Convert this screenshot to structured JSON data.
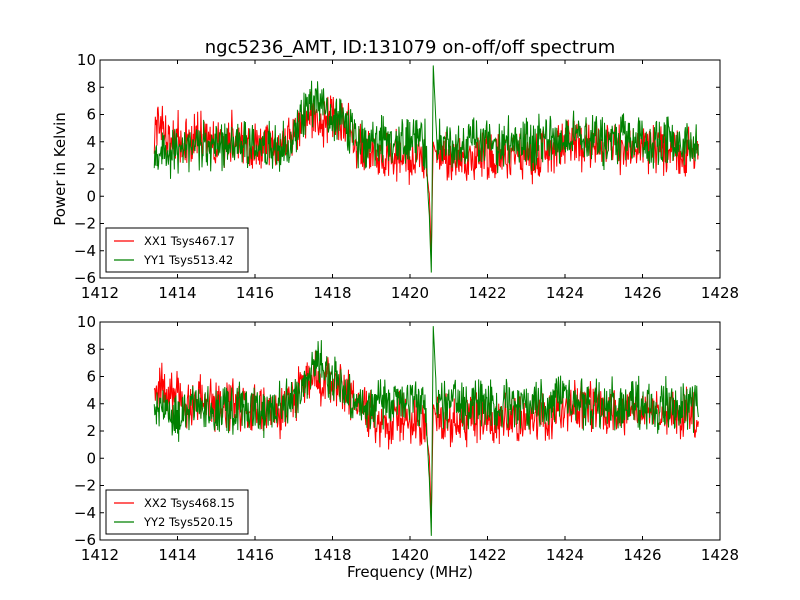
{
  "chart_data": {
    "title": "ngc5236_AMT, ID:131079 on-off/off spectrum",
    "xlabel": "Frequency (MHz)",
    "ylabel": "Power in Kelvin",
    "colors": {
      "xx": "#ff0000",
      "yy": "#008000"
    },
    "panels": [
      {
        "type": "line",
        "xlim": [
          1412,
          1428
        ],
        "ylim": [
          -6,
          10
        ],
        "xticks": [
          1412,
          1414,
          1416,
          1418,
          1420,
          1422,
          1424,
          1426,
          1428
        ],
        "yticks": [
          -6,
          -4,
          -2,
          0,
          2,
          4,
          6,
          8,
          10
        ],
        "legend_position": "lower-left",
        "series": [
          {
            "name": "XX1 Tsys467.17",
            "color": "#ff0000",
            "x": [
              1413.4,
              1413.6,
              1413.8,
              1414.0,
              1414.2,
              1414.4,
              1414.6,
              1414.8,
              1415.0,
              1415.2,
              1415.4,
              1415.6,
              1415.8,
              1416.0,
              1416.2,
              1416.4,
              1416.6,
              1416.8,
              1417.0,
              1417.2,
              1417.4,
              1417.6,
              1417.8,
              1418.0,
              1418.2,
              1418.4,
              1418.6,
              1418.8,
              1419.0,
              1419.2,
              1419.4,
              1419.6,
              1419.8,
              1420.0,
              1420.2,
              1420.4,
              1420.5,
              1420.55,
              1420.6,
              1420.7,
              1420.8,
              1421.0,
              1421.2,
              1421.4,
              1421.6,
              1421.8,
              1422.0,
              1422.2,
              1422.4,
              1422.6,
              1422.8,
              1423.0,
              1423.2,
              1423.4,
              1423.6,
              1423.8,
              1424.0,
              1424.2,
              1424.4,
              1424.6,
              1424.8,
              1425.0,
              1425.2,
              1425.4,
              1425.6,
              1425.8,
              1426.0,
              1426.2,
              1426.4,
              1426.6,
              1426.8,
              1427.0,
              1427.2,
              1427.45
            ],
            "y": [
              4.5,
              5.2,
              4.0,
              4.6,
              3.8,
              4.2,
              4.4,
              3.9,
              4.1,
              3.6,
              4.3,
              3.7,
              3.5,
              3.9,
              3.4,
              3.8,
              3.3,
              3.9,
              4.4,
              5.6,
              6.2,
              5.8,
              5.5,
              6.0,
              5.2,
              5.0,
              4.0,
              3.5,
              3.2,
              3.0,
              2.6,
              2.9,
              3.1,
              2.7,
              3.0,
              2.5,
              0.0,
              -4.3,
              4.0,
              2.9,
              3.1,
              2.8,
              3.0,
              2.4,
              3.2,
              2.9,
              3.1,
              2.6,
              3.3,
              2.8,
              3.0,
              3.2,
              2.7,
              3.4,
              3.1,
              3.5,
              3.8,
              4.0,
              3.6,
              4.2,
              3.7,
              3.5,
              3.9,
              3.4,
              3.6,
              3.2,
              3.8,
              3.3,
              3.5,
              3.1,
              3.6,
              3.0,
              3.4,
              3.2
            ]
          },
          {
            "name": "YY1 Tsys513.42",
            "color": "#008000",
            "x": [
              1413.4,
              1413.6,
              1413.8,
              1414.0,
              1414.2,
              1414.4,
              1414.6,
              1414.8,
              1415.0,
              1415.2,
              1415.4,
              1415.6,
              1415.8,
              1416.0,
              1416.2,
              1416.4,
              1416.6,
              1416.8,
              1417.0,
              1417.2,
              1417.4,
              1417.6,
              1417.8,
              1418.0,
              1418.2,
              1418.4,
              1418.6,
              1418.8,
              1419.0,
              1419.2,
              1419.4,
              1419.6,
              1419.8,
              1420.0,
              1420.2,
              1420.4,
              1420.5,
              1420.55,
              1420.6,
              1420.7,
              1420.8,
              1421.0,
              1421.2,
              1421.4,
              1421.6,
              1421.8,
              1422.0,
              1422.2,
              1422.4,
              1422.6,
              1422.8,
              1423.0,
              1423.2,
              1423.4,
              1423.6,
              1423.8,
              1424.0,
              1424.2,
              1424.4,
              1424.6,
              1424.8,
              1425.0,
              1425.2,
              1425.4,
              1425.6,
              1425.8,
              1426.0,
              1426.2,
              1426.4,
              1426.6,
              1426.8,
              1427.0,
              1427.2,
              1427.45
            ],
            "y": [
              3.2,
              3.6,
              3.4,
              2.8,
              3.7,
              3.5,
              3.9,
              3.3,
              3.8,
              3.6,
              3.4,
              3.9,
              3.5,
              3.7,
              3.3,
              3.9,
              3.6,
              4.0,
              4.4,
              5.4,
              6.5,
              7.3,
              6.0,
              5.7,
              5.3,
              4.6,
              4.1,
              3.8,
              3.9,
              4.2,
              4.0,
              4.4,
              3.8,
              4.1,
              3.9,
              3.6,
              -1.5,
              -5.6,
              9.6,
              3.6,
              3.9,
              4.2,
              4.0,
              3.5,
              4.4,
              3.8,
              4.1,
              3.6,
              3.9,
              4.2,
              3.7,
              4.0,
              3.8,
              4.3,
              4.0,
              4.5,
              4.1,
              4.7,
              4.3,
              3.9,
              4.2,
              3.8,
              4.4,
              3.7,
              4.2,
              3.9,
              4.1,
              3.8,
              3.6,
              4.2,
              3.7,
              4.0,
              3.8,
              3.6
            ]
          }
        ]
      },
      {
        "type": "line",
        "xlim": [
          1412,
          1428
        ],
        "ylim": [
          -6,
          10
        ],
        "xticks": [
          1412,
          1414,
          1416,
          1418,
          1420,
          1422,
          1424,
          1426,
          1428
        ],
        "yticks": [
          -6,
          -4,
          -2,
          0,
          2,
          4,
          6,
          8,
          10
        ],
        "legend_position": "lower-left",
        "series": [
          {
            "name": "XX2 Tsys468.15",
            "color": "#ff0000",
            "x": [
              1413.4,
              1413.6,
              1413.8,
              1414.0,
              1414.2,
              1414.4,
              1414.6,
              1414.8,
              1415.0,
              1415.2,
              1415.4,
              1415.6,
              1415.8,
              1416.0,
              1416.2,
              1416.4,
              1416.6,
              1416.8,
              1417.0,
              1417.2,
              1417.4,
              1417.6,
              1417.8,
              1418.0,
              1418.2,
              1418.4,
              1418.6,
              1418.8,
              1419.0,
              1419.2,
              1419.4,
              1419.6,
              1419.8,
              1420.0,
              1420.2,
              1420.4,
              1420.5,
              1420.55,
              1420.6,
              1420.7,
              1420.8,
              1421.0,
              1421.2,
              1421.4,
              1421.6,
              1421.8,
              1422.0,
              1422.2,
              1422.4,
              1422.6,
              1422.8,
              1423.0,
              1423.2,
              1423.4,
              1423.6,
              1423.8,
              1424.0,
              1424.2,
              1424.4,
              1424.6,
              1424.8,
              1425.0,
              1425.2,
              1425.4,
              1425.6,
              1425.8,
              1426.0,
              1426.2,
              1426.4,
              1426.6,
              1426.8,
              1427.0,
              1427.2,
              1427.45
            ],
            "y": [
              4.6,
              5.0,
              4.2,
              4.8,
              3.9,
              4.3,
              4.5,
              3.8,
              4.0,
              3.7,
              4.2,
              3.6,
              3.4,
              3.8,
              3.5,
              3.7,
              3.2,
              3.8,
              4.3,
              5.5,
              6.1,
              6.0,
              5.4,
              5.8,
              5.1,
              4.9,
              3.9,
              3.4,
              3.1,
              2.8,
              2.5,
              2.8,
              3.0,
              2.6,
              2.9,
              2.4,
              0.0,
              -4.4,
              3.9,
              2.8,
              3.0,
              2.7,
              2.9,
              2.3,
              3.1,
              2.8,
              3.0,
              2.5,
              3.2,
              2.7,
              2.9,
              3.1,
              2.6,
              3.3,
              3.0,
              3.4,
              3.7,
              3.9,
              3.5,
              4.1,
              3.6,
              3.4,
              3.8,
              3.3,
              3.5,
              3.1,
              3.7,
              3.2,
              3.4,
              3.0,
              3.5,
              2.9,
              3.3,
              3.1
            ]
          },
          {
            "name": "YY2 Tsys520.15",
            "color": "#008000",
            "x": [
              1413.4,
              1413.6,
              1413.8,
              1414.0,
              1414.2,
              1414.4,
              1414.6,
              1414.8,
              1415.0,
              1415.2,
              1415.4,
              1415.6,
              1415.8,
              1416.0,
              1416.2,
              1416.4,
              1416.6,
              1416.8,
              1417.0,
              1417.2,
              1417.4,
              1417.6,
              1417.8,
              1418.0,
              1418.2,
              1418.4,
              1418.6,
              1418.8,
              1419.0,
              1419.2,
              1419.4,
              1419.6,
              1419.8,
              1420.0,
              1420.2,
              1420.4,
              1420.5,
              1420.55,
              1420.6,
              1420.7,
              1420.8,
              1421.0,
              1421.2,
              1421.4,
              1421.6,
              1421.8,
              1422.0,
              1422.2,
              1422.4,
              1422.6,
              1422.8,
              1423.0,
              1423.2,
              1423.4,
              1423.6,
              1423.8,
              1424.0,
              1424.2,
              1424.4,
              1424.6,
              1424.8,
              1425.0,
              1425.2,
              1425.4,
              1425.6,
              1425.8,
              1426.0,
              1426.2,
              1426.4,
              1426.6,
              1426.8,
              1427.0,
              1427.2,
              1427.45
            ],
            "y": [
              3.3,
              3.5,
              3.6,
              2.9,
              3.8,
              3.4,
              4.0,
              3.4,
              3.7,
              3.5,
              3.5,
              3.8,
              3.6,
              3.6,
              3.4,
              3.8,
              3.5,
              4.1,
              4.5,
              5.5,
              6.6,
              7.5,
              6.1,
              5.6,
              5.4,
              4.7,
              4.0,
              3.9,
              3.8,
              4.3,
              4.1,
              4.3,
              3.9,
              4.0,
              4.0,
              3.7,
              -1.6,
              -5.7,
              9.7,
              3.7,
              3.8,
              4.1,
              4.1,
              3.6,
              4.3,
              3.9,
              4.0,
              3.7,
              3.8,
              4.3,
              3.8,
              3.9,
              3.9,
              4.2,
              4.1,
              4.4,
              4.2,
              4.6,
              4.4,
              3.8,
              4.3,
              3.9,
              4.3,
              3.8,
              4.1,
              4.0,
              4.0,
              3.9,
              3.7,
              4.1,
              3.8,
              3.9,
              3.9,
              3.7
            ]
          }
        ]
      }
    ]
  }
}
